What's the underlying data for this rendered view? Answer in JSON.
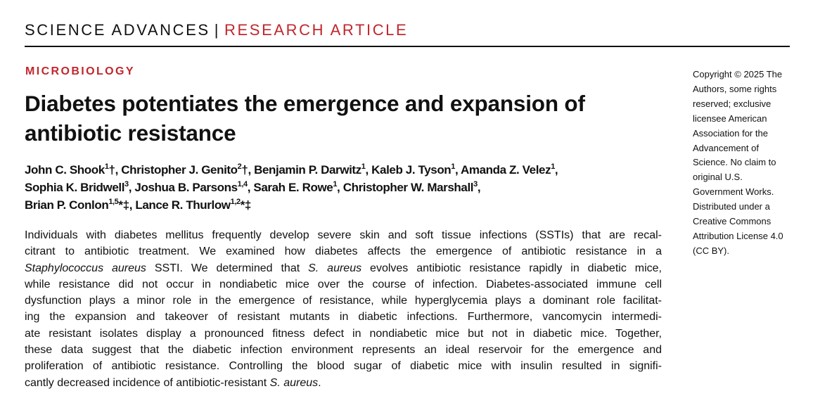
{
  "header": {
    "journal": "SCIENCE ADVANCES",
    "separator": "|",
    "article_type": "RESEARCH ARTICLE"
  },
  "section": "MICROBIOLOGY",
  "title_lines": [
    "Diabetes potentiates the emergence and expansion of",
    "antibiotic resistance"
  ],
  "authors": [
    [
      {
        "n": "John C. Shook",
        "s": "1",
        "m": "†"
      },
      {
        "n": "Christopher J. Genito",
        "s": "2",
        "m": "†"
      },
      {
        "n": "Benjamin P. Darwitz",
        "s": "1",
        "m": ""
      },
      {
        "n": "Kaleb J. Tyson",
        "s": "1",
        "m": ""
      },
      {
        "n": "Amanda Z. Velez",
        "s": "1",
        "m": ""
      }
    ],
    [
      {
        "n": "Sophia K. Bridwell",
        "s": "3",
        "m": ""
      },
      {
        "n": "Joshua B. Parsons",
        "s": "1,4",
        "m": ""
      },
      {
        "n": "Sarah E. Rowe",
        "s": "1",
        "m": ""
      },
      {
        "n": "Christopher W. Marshall",
        "s": "3",
        "m": ""
      }
    ],
    [
      {
        "n": "Brian P. Conlon",
        "s": "1,5",
        "m": "*‡"
      },
      {
        "n": "Lance R. Thurlow",
        "s": "1,2",
        "m": "*‡"
      }
    ]
  ],
  "abstract_lines": [
    [
      {
        "t": "Individuals with diabetes mellitus frequently develop severe skin and soft tissue infections (SSTIs) that are recal-",
        "i": false
      }
    ],
    [
      {
        "t": "citrant to antibiotic treatment. We examined how diabetes affects the emergence of antibiotic resistance in a",
        "i": false
      }
    ],
    [
      {
        "t": "Staphylococcus aureus",
        "i": true
      },
      {
        "t": " SSTI. We determined that ",
        "i": false
      },
      {
        "t": "S. aureus",
        "i": true
      },
      {
        "t": " evolves antibiotic resistance rapidly in diabetic mice,",
        "i": false
      }
    ],
    [
      {
        "t": "while resistance did not occur in nondiabetic mice over the course of infection. Diabetes-associated immune cell",
        "i": false
      }
    ],
    [
      {
        "t": "dysfunction plays a minor role in the emergence of resistance, while hyperglycemia plays a dominant role facilitat-",
        "i": false
      }
    ],
    [
      {
        "t": "ing the expansion and takeover of resistant mutants in diabetic infections. Furthermore, vancomycin intermedi-",
        "i": false
      }
    ],
    [
      {
        "t": "ate resistant isolates display a pronounced fitness defect in nondiabetic mice but not in diabetic mice. Together,",
        "i": false
      }
    ],
    [
      {
        "t": "these data suggest that the diabetic infection environment represents an ideal reservoir for the emergence and",
        "i": false
      }
    ],
    [
      {
        "t": "proliferation of antibiotic resistance. Controlling the blood sugar of diabetic mice with insulin resulted in signifi-",
        "i": false
      }
    ],
    [
      {
        "t": "cantly decreased incidence of antibiotic-resistant ",
        "i": false
      },
      {
        "t": "S. aureus",
        "i": true
      },
      {
        "t": ".",
        "i": false
      }
    ]
  ],
  "copyright_lines": [
    "Copyright © 2025 The",
    "Authors, some rights",
    "reserved; exclusive",
    "licensee American",
    "Association for the",
    "Advancement of",
    "Science. No claim to",
    "original U.S.",
    "Government Works.",
    "Distributed under a",
    "Creative Commons",
    "Attribution License 4.0",
    "(CC BY)."
  ]
}
